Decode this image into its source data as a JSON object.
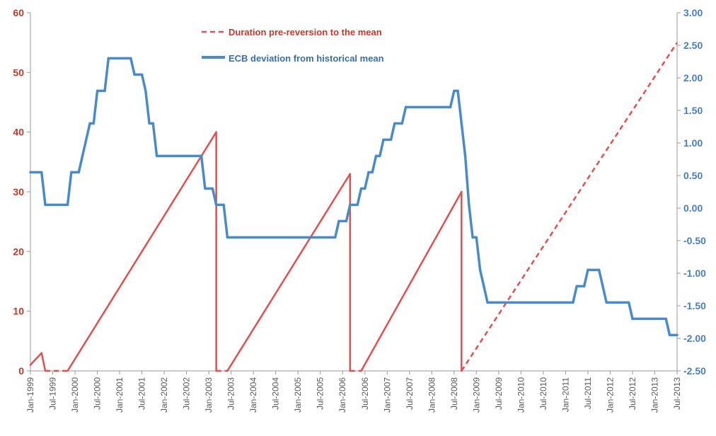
{
  "chart_data": {
    "type": "line",
    "title": "",
    "colors": {
      "left_axis": "#c0392b",
      "right_axis": "#4a7ebb",
      "axis_line": "#999999"
    },
    "left_axis": {
      "ylim": [
        0,
        60
      ],
      "ticks": [
        "0",
        "10",
        "20",
        "30",
        "40",
        "50",
        "60"
      ]
    },
    "right_axis": {
      "ylim": [
        -2.5,
        3.0
      ],
      "ticks": [
        "-2.50",
        "-2.00",
        "-1.50",
        "-1.00",
        "-0.50",
        "0.00",
        "0.50",
        "1.00",
        "1.50",
        "2.00",
        "2.50",
        "3.00"
      ]
    },
    "x_axis": {
      "range": [
        "1999-01",
        "2013-07"
      ],
      "tick_labels": [
        "Jan-1999",
        "Jul-1999",
        "Jan-2000",
        "Jul-2000",
        "Jan-2001",
        "Jul-2001",
        "Jan-2002",
        "Jul-2002",
        "Jan-2003",
        "Jul-2003",
        "Jan-2004",
        "Jul-2004",
        "Jan-2005",
        "Jul-2005",
        "Jan-2006",
        "Jul-2006",
        "Jan-2007",
        "Jul-2007",
        "Jan-2008",
        "Jul-2008",
        "Jan-2009",
        "Jul-2009",
        "Jan-2010",
        "Jul-2010",
        "Jan-2011",
        "Jul-2011",
        "Jan-2012",
        "Jul-2012",
        "Jan-2013",
        "Jul-2013"
      ]
    },
    "legend": {
      "placement": "top-center"
    },
    "series": [
      {
        "name": "Duration pre-reversion to the mean",
        "axis": "left",
        "color": "#e05050",
        "points": [
          [
            "1999-01",
            1
          ],
          [
            "1999-04",
            3
          ],
          [
            "1999-05",
            0
          ],
          [
            "1999-11",
            0
          ],
          [
            "2003-03",
            40
          ],
          [
            "2003-03",
            0
          ],
          [
            "2003-06",
            0
          ],
          [
            "2006-03",
            33
          ],
          [
            "2006-03",
            0
          ],
          [
            "2006-06",
            0
          ],
          [
            "2008-09",
            30
          ],
          [
            "2008-09",
            0
          ],
          [
            "2013-07",
            55
          ]
        ],
        "dashed_segments": [
          2,
          5,
          8,
          11
        ]
      },
      {
        "name": "ECB deviation from historical mean",
        "axis": "right",
        "color": "#4a8ac8",
        "points": [
          [
            "1999-01",
            0.55
          ],
          [
            "1999-04",
            0.55
          ],
          [
            "1999-05",
            0.05
          ],
          [
            "1999-11",
            0.05
          ],
          [
            "1999-12",
            0.55
          ],
          [
            "2000-02",
            0.55
          ],
          [
            "2000-03",
            0.8
          ],
          [
            "2000-04",
            1.05
          ],
          [
            "2000-05",
            1.3
          ],
          [
            "2000-06",
            1.3
          ],
          [
            "2000-07",
            1.8
          ],
          [
            "2000-09",
            1.8
          ],
          [
            "2000-10",
            2.3
          ],
          [
            "2001-04",
            2.3
          ],
          [
            "2001-05",
            2.05
          ],
          [
            "2001-07",
            2.05
          ],
          [
            "2001-08",
            1.8
          ],
          [
            "2001-09",
            1.3
          ],
          [
            "2001-10",
            1.3
          ],
          [
            "2001-11",
            0.8
          ],
          [
            "2002-11",
            0.8
          ],
          [
            "2002-12",
            0.3
          ],
          [
            "2003-02",
            0.3
          ],
          [
            "2003-03",
            0.05
          ],
          [
            "2003-05",
            0.05
          ],
          [
            "2003-06",
            -0.45
          ],
          [
            "2005-11",
            -0.45
          ],
          [
            "2005-12",
            -0.2
          ],
          [
            "2006-02",
            -0.2
          ],
          [
            "2006-03",
            0.05
          ],
          [
            "2006-05",
            0.05
          ],
          [
            "2006-06",
            0.3
          ],
          [
            "2006-07",
            0.3
          ],
          [
            "2006-08",
            0.55
          ],
          [
            "2006-09",
            0.55
          ],
          [
            "2006-10",
            0.8
          ],
          [
            "2006-11",
            0.8
          ],
          [
            "2006-12",
            1.05
          ],
          [
            "2007-02",
            1.05
          ],
          [
            "2007-03",
            1.3
          ],
          [
            "2007-05",
            1.3
          ],
          [
            "2007-06",
            1.55
          ],
          [
            "2008-06",
            1.55
          ],
          [
            "2008-07",
            1.8
          ],
          [
            "2008-08",
            1.8
          ],
          [
            "2008-09",
            1.3
          ],
          [
            "2008-10",
            0.8
          ],
          [
            "2008-11",
            0.05
          ],
          [
            "2008-12",
            -0.45
          ],
          [
            "2009-01",
            -0.45
          ],
          [
            "2009-02",
            -0.95
          ],
          [
            "2009-03",
            -1.2
          ],
          [
            "2009-04",
            -1.45
          ],
          [
            "2011-03",
            -1.45
          ],
          [
            "2011-04",
            -1.2
          ],
          [
            "2011-06",
            -1.2
          ],
          [
            "2011-07",
            -0.95
          ],
          [
            "2011-10",
            -0.95
          ],
          [
            "2011-11",
            -1.2
          ],
          [
            "2011-12",
            -1.45
          ],
          [
            "2012-06",
            -1.45
          ],
          [
            "2012-07",
            -1.7
          ],
          [
            "2013-04",
            -1.7
          ],
          [
            "2013-05",
            -1.95
          ],
          [
            "2013-07",
            -1.95
          ]
        ]
      }
    ]
  }
}
